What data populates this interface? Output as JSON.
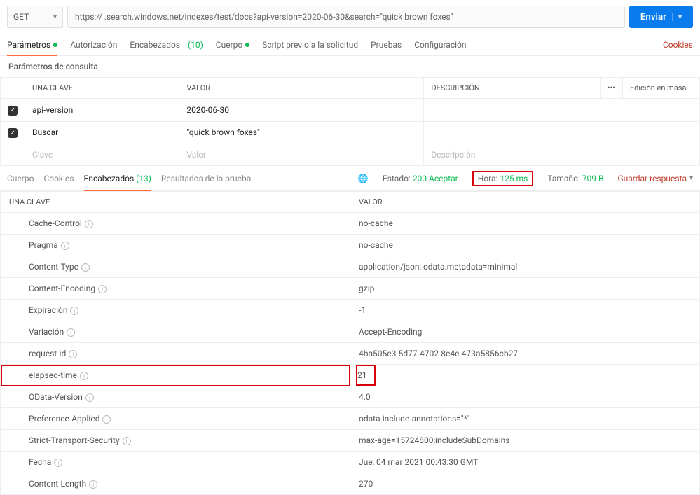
{
  "request": {
    "method": "GET",
    "url": "https://        .search.windows.net/indexes/test/docs?api-version=2020-06-30&search=\"quick brown foxes\"",
    "send_label": "Enviar"
  },
  "req_tabs": {
    "params": "Parámetros",
    "auth": "Autorización",
    "headers": "Encabezados",
    "headers_count": "(10)",
    "body": "Cuerpo",
    "prerequest": "Script previo a la solicitud",
    "tests": "Pruebas",
    "settings": "Configuración",
    "cookies": "Cookies"
  },
  "params_section": {
    "title": "Parámetros de consulta",
    "col_key": "UNA CLAVE",
    "col_value": "VALOR",
    "col_desc": "DESCRIPCIÓN",
    "bulk_edit": "Edición en masa",
    "rows": [
      {
        "key": "api-version",
        "value": "2020-06-30",
        "desc": ""
      },
      {
        "key": "Buscar",
        "value": "\"quick brown foxes\"",
        "desc": ""
      }
    ],
    "placeholder_key": "Clave",
    "placeholder_value": "Valor",
    "placeholder_desc": "Descripción"
  },
  "resp_tabs": {
    "body": "Cuerpo",
    "cookies": "Cookies",
    "headers": "Encabezados",
    "headers_count": "(13)",
    "tests": "Resultados de la prueba"
  },
  "resp_meta": {
    "status_label": "Estado:",
    "status_value": "200 Aceptar",
    "time_label": "Hora:",
    "time_value": "125 ms",
    "size_label": "Tamaño:",
    "size_value": "709 B",
    "save": "Guardar respuesta"
  },
  "headers_section": {
    "col_key": "UNA CLAVE",
    "col_value": "VALOR",
    "rows": [
      {
        "key": "Cache-Control",
        "value": "no-cache"
      },
      {
        "key": "Pragma",
        "value": "no-cache"
      },
      {
        "key": "Content-Type",
        "value": "application/json; odata.metadata=minimal"
      },
      {
        "key": "Content-Encoding",
        "value": "gzip"
      },
      {
        "key": "Expiración",
        "value": "-1"
      },
      {
        "key": "Variación",
        "value": "Accept-Encoding"
      },
      {
        "key": "request-id",
        "value": "4ba505e3-5d77-4702-8e4e-473a5856cb27"
      },
      {
        "key": "elapsed-time",
        "value": "21",
        "highlight": true
      },
      {
        "key": "OData-Version",
        "value": "4.0"
      },
      {
        "key": "Preference-Applied",
        "value": "odata.include-annotations=\"*\""
      },
      {
        "key": "Strict-Transport-Security",
        "value": "max-age=15724800;includeSubDomains"
      },
      {
        "key": "Fecha",
        "value": "Jue, 04 mar 2021 00:43:30 GMT"
      },
      {
        "key": "Content-Length",
        "value": "270"
      }
    ]
  },
  "colors": {
    "accent": "#ff6c37",
    "primary": "#097bed",
    "success": "#0cbb52",
    "danger": "#c0392b",
    "highlight_border": "#d9000c"
  }
}
